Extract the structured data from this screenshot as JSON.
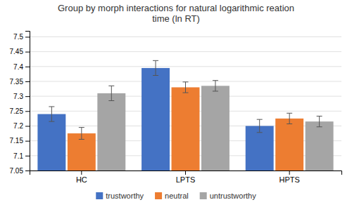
{
  "chart_data": {
    "type": "bar",
    "title": "Group by morph interactions for natural logarithmic reation\ntime (ln RT)",
    "categories": [
      "HC",
      "LPTS",
      "HPTS"
    ],
    "series": [
      {
        "name": "trustworthy",
        "color": "#4472C4",
        "values": [
          7.24,
          7.395,
          7.2
        ],
        "errors": [
          0.025,
          0.025,
          0.022
        ]
      },
      {
        "name": "neutral",
        "color": "#ED7D31",
        "values": [
          7.175,
          7.33,
          7.225
        ],
        "errors": [
          0.02,
          0.018,
          0.018
        ]
      },
      {
        "name": "untrustworthy",
        "color": "#A5A5A5",
        "values": [
          7.31,
          7.335,
          7.215
        ],
        "errors": [
          0.025,
          0.018,
          0.018
        ]
      }
    ],
    "ylim": [
      7.05,
      7.52
    ],
    "yticks": [
      7.05,
      7.1,
      7.15,
      7.2,
      7.25,
      7.3,
      7.35,
      7.4,
      7.45,
      7.5
    ],
    "grid": true,
    "legend": "bottom"
  }
}
